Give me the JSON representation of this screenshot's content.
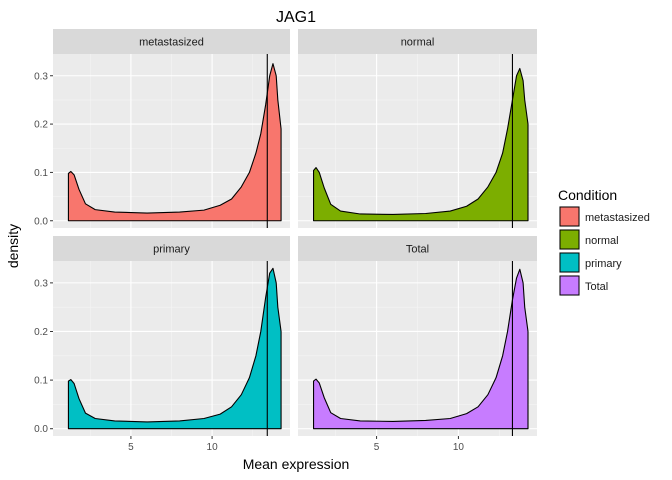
{
  "chart_data": {
    "type": "area",
    "title": "JAG1",
    "xlabel": "Mean expression",
    "ylabel": "density",
    "facet_layout": "2x2 grid",
    "xlim": [
      0.2,
      14.8
    ],
    "ylim": [
      -0.015,
      0.345
    ],
    "x_ticks": [
      5,
      10
    ],
    "y_ticks": [
      0.0,
      0.1,
      0.2,
      0.3
    ],
    "y_tick_labels": [
      "0.0",
      "0.1",
      "0.2",
      "0.3"
    ],
    "grid": true,
    "legend": {
      "title": "Condition",
      "position": "right",
      "entries": [
        "metastasized",
        "normal",
        "primary",
        "Total"
      ]
    },
    "panels": [
      {
        "name": "metastasized",
        "color": "#F8766D",
        "vline": 13.4,
        "x": [
          1.15,
          1.3,
          1.5,
          1.8,
          2.2,
          2.8,
          4,
          6,
          8,
          9.5,
          10.5,
          11.2,
          11.8,
          12.3,
          12.7,
          13,
          13.3,
          13.55,
          13.75,
          13.95,
          14.05,
          14.25
        ],
        "y": [
          0.098,
          0.102,
          0.095,
          0.065,
          0.035,
          0.023,
          0.018,
          0.016,
          0.018,
          0.022,
          0.032,
          0.045,
          0.07,
          0.1,
          0.14,
          0.18,
          0.24,
          0.3,
          0.325,
          0.3,
          0.25,
          0.19
        ]
      },
      {
        "name": "normal",
        "color": "#7CAE00",
        "vline": 13.3,
        "x": [
          1.15,
          1.3,
          1.5,
          1.8,
          2.2,
          2.8,
          4,
          6,
          8,
          9.5,
          10.5,
          11.2,
          11.8,
          12.3,
          12.7,
          13,
          13.3,
          13.55,
          13.75,
          13.95,
          14.05,
          14.25
        ],
        "y": [
          0.104,
          0.11,
          0.1,
          0.068,
          0.034,
          0.02,
          0.014,
          0.013,
          0.015,
          0.02,
          0.03,
          0.045,
          0.07,
          0.1,
          0.14,
          0.19,
          0.25,
          0.3,
          0.315,
          0.29,
          0.25,
          0.2
        ]
      },
      {
        "name": "primary",
        "color": "#00BFC4",
        "vline": 13.4,
        "x": [
          1.15,
          1.3,
          1.5,
          1.8,
          2.2,
          2.8,
          4,
          6,
          8,
          9.5,
          10.5,
          11.2,
          11.8,
          12.3,
          12.7,
          13,
          13.3,
          13.55,
          13.75,
          13.95,
          14.05,
          14.25
        ],
        "y": [
          0.098,
          0.101,
          0.093,
          0.062,
          0.032,
          0.021,
          0.016,
          0.014,
          0.016,
          0.021,
          0.03,
          0.045,
          0.07,
          0.105,
          0.15,
          0.2,
          0.27,
          0.32,
          0.33,
          0.3,
          0.25,
          0.2
        ]
      },
      {
        "name": "Total",
        "color": "#C77CFF",
        "vline": 13.3,
        "x": [
          1.15,
          1.3,
          1.5,
          1.8,
          2.2,
          2.8,
          4,
          6,
          8,
          9.5,
          10.5,
          11.2,
          11.8,
          12.3,
          12.7,
          13,
          13.3,
          13.55,
          13.75,
          13.95,
          14.05,
          14.25
        ],
        "y": [
          0.098,
          0.102,
          0.094,
          0.064,
          0.033,
          0.021,
          0.016,
          0.015,
          0.017,
          0.021,
          0.031,
          0.045,
          0.07,
          0.105,
          0.15,
          0.2,
          0.265,
          0.31,
          0.328,
          0.3,
          0.25,
          0.2
        ]
      }
    ]
  }
}
